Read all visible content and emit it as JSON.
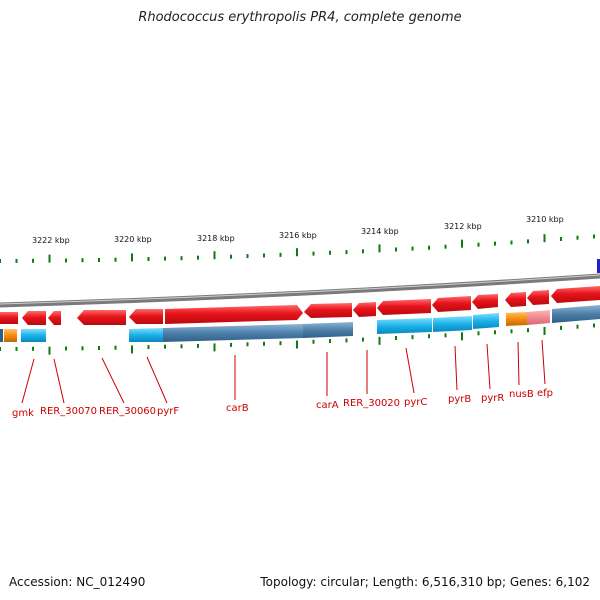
{
  "title": "Rhodococcus erythropolis PR4, complete genome",
  "footer": {
    "accession": "Accession: NC_012490",
    "stats": "Topology: circular; Length: 6,516,310 bp; Genes: 6,102"
  },
  "colors": {
    "forward_gene": "#e8141b",
    "forward_gene_light": "#f08a8f",
    "cds_cyan": "#1ab2e8",
    "cds_steel": "#4c7fa8",
    "cds_orange": "#f28c0f",
    "backbone": "#7a7a7a",
    "tick": "#0f7a0f",
    "marker_blue": "#2020d0",
    "label": "#cc0000"
  },
  "kbp_labels": [
    "3222 kbp",
    "3220 kbp",
    "3218 kbp",
    "3216 kbp",
    "3214 kbp",
    "3212 kbp",
    "3210 kbp"
  ],
  "gene_labels": [
    "gmk",
    "RER_30070",
    "RER_30060",
    "pyrF",
    "carB",
    "carA",
    "RER_30020",
    "pyrC",
    "pyrB",
    "pyrR",
    "nusB",
    "efp"
  ]
}
